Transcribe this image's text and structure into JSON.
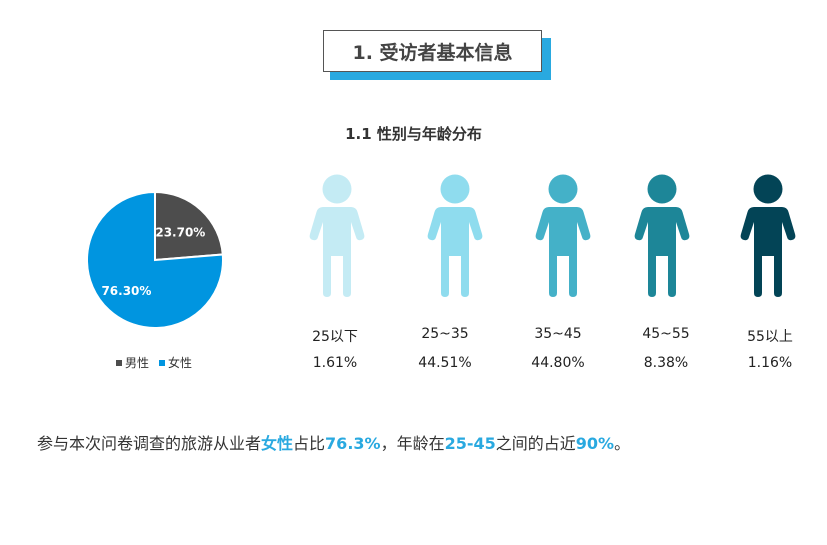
{
  "section_title": "1. 受访者基本信息",
  "chart_data": [
    {
      "type": "pie",
      "title": "",
      "slices": [
        {
          "name": "男性",
          "value": 23.7,
          "label": "23.70%",
          "color": "#4d4d4d"
        },
        {
          "name": "女性",
          "value": 76.3,
          "label": "76.30%",
          "color": "#0095e0"
        }
      ],
      "legend_position": "bottom"
    },
    {
      "type": "bar",
      "title": "1.1 性别与年龄分布",
      "categories": [
        "25以下",
        "25~35",
        "35~45",
        "45~55",
        "55以上"
      ],
      "values": [
        1.61,
        44.51,
        44.8,
        8.38,
        1.16
      ],
      "value_labels": [
        "1.61%",
        "44.51%",
        "44.80%",
        "8.38%",
        "1.16%"
      ],
      "colors": [
        "#c4ebf4",
        "#8fdcee",
        "#44b1c8",
        "#1d8698",
        "#034456"
      ],
      "icon": "person-icon"
    }
  ],
  "summary": {
    "p1": "参与本次问卷调查的旅游从业者",
    "h1": "女性",
    "p2": "占比",
    "h2": "76.3%",
    "p3": "，年龄在",
    "h3": "25-45",
    "p4": "之间的占近",
    "h4": "90%",
    "p5": "。"
  }
}
